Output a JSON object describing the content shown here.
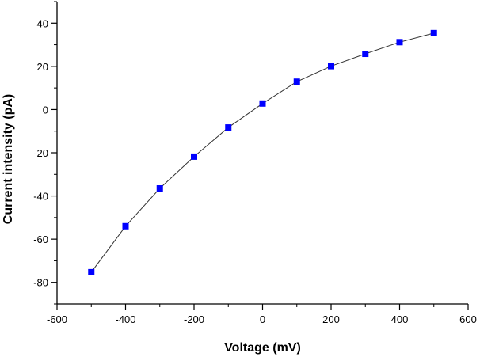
{
  "chart_data": {
    "type": "line",
    "title": "",
    "xlabel": "Voltage (mV)",
    "ylabel": "Current intensity (pA)",
    "xlim": [
      -600,
      600
    ],
    "ylim": [
      -90,
      50
    ],
    "xticks": [
      -600,
      -400,
      -200,
      0,
      200,
      400,
      600
    ],
    "yticks": [
      -80,
      -60,
      -40,
      -20,
      0,
      20,
      40
    ],
    "grid": false,
    "legend": "none",
    "series": [
      {
        "name": "Current intensity",
        "marker": "square",
        "color": "#0000ff",
        "line_color": "#333333",
        "x": [
          -500,
          -400,
          -300,
          -200,
          -100,
          0,
          100,
          200,
          300,
          400,
          500
        ],
        "y": [
          -75.3,
          -54,
          -36.5,
          -21.8,
          -8.3,
          2.8,
          12.9,
          20.1,
          25.8,
          31.2,
          35.4
        ]
      }
    ]
  }
}
